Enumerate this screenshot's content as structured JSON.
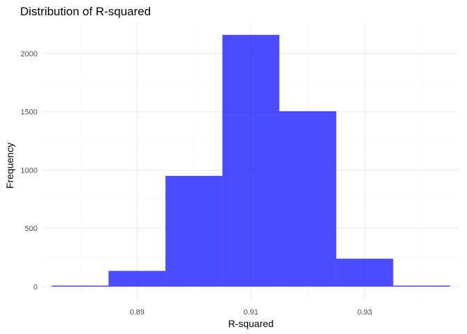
{
  "chart_data": {
    "type": "bar",
    "title": "Distribution of R-squared",
    "xlabel": "R-squared",
    "ylabel": "Frequency",
    "bins": [
      {
        "x0": 0.875,
        "x1": 0.885,
        "count": 5
      },
      {
        "x0": 0.885,
        "x1": 0.895,
        "count": 135
      },
      {
        "x0": 0.895,
        "x1": 0.905,
        "count": 950
      },
      {
        "x0": 0.905,
        "x1": 0.915,
        "count": 2160
      },
      {
        "x0": 0.915,
        "x1": 0.925,
        "count": 1505
      },
      {
        "x0": 0.925,
        "x1": 0.935,
        "count": 240
      },
      {
        "x0": 0.935,
        "x1": 0.945,
        "count": 5
      }
    ],
    "xlim": [
      0.8735,
      0.9465
    ],
    "ylim": [
      -108,
      2268
    ],
    "x_ticks": [
      0.89,
      0.91,
      0.93
    ],
    "x_tick_labels": [
      "0.89",
      "0.91",
      "0.93"
    ],
    "x_minor_ticks": [
      0.88,
      0.9,
      0.92,
      0.94
    ],
    "y_ticks": [
      0,
      500,
      1000,
      1500,
      2000
    ],
    "y_tick_labels": [
      "0",
      "500",
      "1000",
      "1500",
      "2000"
    ],
    "y_minor_ticks": [
      250,
      750,
      1250,
      1750
    ],
    "bar_color": "#0000FF",
    "bar_opacity": 0.7,
    "grid": true,
    "background": "#FFFFFF",
    "grid_color": "#EBEBEB"
  }
}
